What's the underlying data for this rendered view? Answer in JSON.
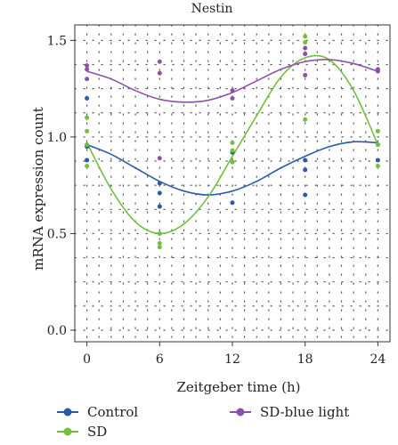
{
  "chart_data": {
    "type": "scatter",
    "title": "Nestin",
    "xlabel": "Zeitgeber time (h)",
    "ylabel": "mRNA expression count",
    "xlim": [
      -1,
      25
    ],
    "ylim": [
      -0.06,
      1.58
    ],
    "xticks": [
      0,
      6,
      12,
      18,
      24
    ],
    "yticks": [
      0.0,
      0.5,
      1.0,
      1.5
    ],
    "ytick_labels": [
      "0.0",
      "0.5",
      "1.0",
      "1.5"
    ],
    "minor_grid_x_step": 1,
    "minor_grid_y_step": 0.125,
    "grid": true,
    "legend_position": "bottom",
    "series": [
      {
        "name": "Control",
        "color": "#2c5aa8",
        "points": [
          [
            0,
            0.96
          ],
          [
            0,
            0.95
          ],
          [
            0,
            0.88
          ],
          [
            0,
            1.2
          ],
          [
            6,
            0.76
          ],
          [
            6,
            0.71
          ],
          [
            6,
            0.64
          ],
          [
            12,
            0.92
          ],
          [
            12,
            0.87
          ],
          [
            12,
            0.66
          ],
          [
            18,
            0.88
          ],
          [
            18,
            0.83
          ],
          [
            18,
            0.7
          ],
          [
            24,
            0.96
          ],
          [
            24,
            0.88
          ]
        ],
        "fit": [
          [
            0,
            0.96
          ],
          [
            2,
            0.91
          ],
          [
            4,
            0.84
          ],
          [
            6,
            0.77
          ],
          [
            8,
            0.72
          ],
          [
            10,
            0.7
          ],
          [
            12,
            0.72
          ],
          [
            14,
            0.77
          ],
          [
            16,
            0.84
          ],
          [
            18,
            0.9
          ],
          [
            20,
            0.95
          ],
          [
            22,
            0.975
          ],
          [
            24,
            0.97
          ]
        ]
      },
      {
        "name": "SD",
        "color": "#72bf3e",
        "points": [
          [
            0,
            1.1
          ],
          [
            0,
            1.03
          ],
          [
            0,
            0.96
          ],
          [
            0,
            0.85
          ],
          [
            6,
            0.5
          ],
          [
            6,
            0.45
          ],
          [
            6,
            0.43
          ],
          [
            12,
            0.97
          ],
          [
            12,
            0.93
          ],
          [
            12,
            0.87
          ],
          [
            18,
            1.52
          ],
          [
            18,
            1.49
          ],
          [
            18,
            1.09
          ],
          [
            24,
            1.03
          ],
          [
            24,
            0.96
          ],
          [
            24,
            0.85
          ]
        ],
        "fit": [
          [
            0,
            0.97
          ],
          [
            2,
            0.73
          ],
          [
            4,
            0.56
          ],
          [
            6,
            0.5
          ],
          [
            8,
            0.55
          ],
          [
            10,
            0.69
          ],
          [
            12,
            0.9
          ],
          [
            14,
            1.11
          ],
          [
            16,
            1.31
          ],
          [
            18,
            1.41
          ],
          [
            20,
            1.4
          ],
          [
            22,
            1.24
          ],
          [
            24,
            0.96
          ]
        ]
      },
      {
        "name": "SD-blue light",
        "color": "#8a52a6",
        "points": [
          [
            0,
            1.37
          ],
          [
            0,
            1.35
          ],
          [
            0,
            1.3
          ],
          [
            6,
            1.39
          ],
          [
            6,
            1.33
          ],
          [
            6,
            0.89
          ],
          [
            12,
            1.24
          ],
          [
            12,
            1.2
          ],
          [
            18,
            1.46
          ],
          [
            18,
            1.43
          ],
          [
            18,
            1.32
          ],
          [
            24,
            1.35
          ],
          [
            24,
            1.34
          ]
        ],
        "fit": [
          [
            0,
            1.34
          ],
          [
            2,
            1.3
          ],
          [
            4,
            1.24
          ],
          [
            6,
            1.195
          ],
          [
            8,
            1.18
          ],
          [
            10,
            1.19
          ],
          [
            12,
            1.23
          ],
          [
            14,
            1.29
          ],
          [
            16,
            1.35
          ],
          [
            18,
            1.39
          ],
          [
            20,
            1.4
          ],
          [
            22,
            1.38
          ],
          [
            24,
            1.34
          ]
        ]
      }
    ]
  }
}
